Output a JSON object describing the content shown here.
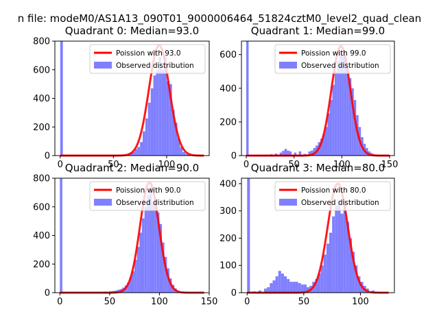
{
  "figure": {
    "suptitle": "n file: modeM0/AS1A13_090T01_9000006464_51824cztM0_level2_quad_clean"
  },
  "colors": {
    "poisson_line": "#ff0000",
    "histogram_fill": "#8080ff",
    "axes": "#000000"
  },
  "chart_data": [
    {
      "type": "bar",
      "title": "Quadrant 0: Median=93.0",
      "xlim": [
        -5,
        140
      ],
      "ylim": [
        0,
        800
      ],
      "xticks": [
        0,
        50,
        100
      ],
      "yticks": [
        0,
        200,
        400,
        600,
        800
      ],
      "series": [
        {
          "name": "Poission with 93.0",
          "kind": "line",
          "mean": 93.0,
          "peak": 770,
          "sigma": 9.6
        },
        {
          "name": "Observed distribution",
          "kind": "histogram",
          "bin_width": 2.5,
          "outlier_bin": {
            "x": 0,
            "count": 800
          },
          "bins": [
            [
              60,
              8
            ],
            [
              62.5,
              12
            ],
            [
              65,
              20
            ],
            [
              67.5,
              25
            ],
            [
              70,
              45
            ],
            [
              72.5,
              60
            ],
            [
              75,
              95
            ],
            [
              77.5,
              170
            ],
            [
              80,
              260
            ],
            [
              82.5,
              370
            ],
            [
              85,
              470
            ],
            [
              87.5,
              560
            ],
            [
              90,
              600
            ],
            [
              92.5,
              690
            ],
            [
              95,
              600
            ],
            [
              97.5,
              700
            ],
            [
              100,
              520
            ],
            [
              102.5,
              500
            ],
            [
              105,
              320
            ],
            [
              107.5,
              230
            ],
            [
              110,
              120
            ],
            [
              112.5,
              60
            ],
            [
              115,
              25
            ],
            [
              117.5,
              12
            ],
            [
              120,
              5
            ]
          ]
        }
      ],
      "legend": "top-right"
    },
    {
      "type": "bar",
      "title": "Quadrant 1: Median=99.0",
      "xlim": [
        -5,
        155
      ],
      "ylim": [
        0,
        680
      ],
      "xticks": [
        0,
        50,
        100,
        150
      ],
      "yticks": [
        0,
        200,
        400,
        600
      ],
      "series": [
        {
          "name": "Poission with 99.0",
          "kind": "line",
          "mean": 99.0,
          "peak": 650,
          "sigma": 9.9
        },
        {
          "name": "Observed distribution",
          "kind": "histogram",
          "bin_width": 2.5,
          "outlier_bin": {
            "x": 0,
            "count": 680
          },
          "bins": [
            [
              20,
              5
            ],
            [
              25,
              8
            ],
            [
              30,
              12
            ],
            [
              35,
              18
            ],
            [
              37.5,
              28
            ],
            [
              40,
              40
            ],
            [
              42.5,
              30
            ],
            [
              45,
              25
            ],
            [
              50,
              18
            ],
            [
              55,
              25
            ],
            [
              60,
              10
            ],
            [
              65,
              25
            ],
            [
              67.5,
              30
            ],
            [
              70,
              45
            ],
            [
              72.5,
              60
            ],
            [
              75,
              80
            ],
            [
              77.5,
              100
            ],
            [
              80,
              130
            ],
            [
              82.5,
              170
            ],
            [
              85,
              250
            ],
            [
              87.5,
              330
            ],
            [
              90,
              420
            ],
            [
              92.5,
              500
            ],
            [
              95,
              560
            ],
            [
              97.5,
              610
            ],
            [
              100,
              600
            ],
            [
              102.5,
              580
            ],
            [
              105,
              510
            ],
            [
              107.5,
              460
            ],
            [
              110,
              400
            ],
            [
              112.5,
              330
            ],
            [
              115,
              240
            ],
            [
              117.5,
              170
            ],
            [
              120,
              110
            ],
            [
              122.5,
              70
            ],
            [
              125,
              45
            ],
            [
              127.5,
              25
            ],
            [
              130,
              15
            ],
            [
              132.5,
              8
            ],
            [
              135,
              4
            ]
          ]
        }
      ],
      "legend": "top-right"
    },
    {
      "type": "bar",
      "title": "Quadrant 2: Median=90.0",
      "xlim": [
        -5,
        150
      ],
      "ylim": [
        0,
        800
      ],
      "xticks": [
        0,
        50,
        100,
        150
      ],
      "yticks": [
        0,
        200,
        400,
        600,
        800
      ],
      "series": [
        {
          "name": "Poission with 90.0",
          "kind": "line",
          "mean": 90.0,
          "peak": 770,
          "sigma": 9.5
        },
        {
          "name": "Observed distribution",
          "kind": "histogram",
          "bin_width": 2.5,
          "outlier_bin": {
            "x": 0,
            "count": 800
          },
          "bins": [
            [
              35,
              5
            ],
            [
              40,
              5
            ],
            [
              45,
              8
            ],
            [
              50,
              10
            ],
            [
              52.5,
              12
            ],
            [
              55,
              15
            ],
            [
              57.5,
              20
            ],
            [
              60,
              25
            ],
            [
              62.5,
              35
            ],
            [
              65,
              50
            ],
            [
              67.5,
              70
            ],
            [
              70,
              110
            ],
            [
              72.5,
              150
            ],
            [
              75,
              230
            ],
            [
              77.5,
              320
            ],
            [
              80,
              420
            ],
            [
              82.5,
              520
            ],
            [
              85,
              600
            ],
            [
              87.5,
              680
            ],
            [
              90,
              740
            ],
            [
              92.5,
              620
            ],
            [
              95,
              650
            ],
            [
              97.5,
              560
            ],
            [
              100,
              480
            ],
            [
              102.5,
              350
            ],
            [
              105,
              250
            ],
            [
              107.5,
              170
            ],
            [
              110,
              100
            ],
            [
              112.5,
              55
            ],
            [
              115,
              30
            ],
            [
              117.5,
              15
            ],
            [
              120,
              8
            ],
            [
              122.5,
              5
            ],
            [
              125,
              3
            ]
          ]
        }
      ],
      "legend": "top-right"
    },
    {
      "type": "bar",
      "title": "Quadrant 3: Median=80.0",
      "xlim": [
        -5,
        130
      ],
      "ylim": [
        0,
        420
      ],
      "xticks": [
        0,
        50,
        100
      ],
      "yticks": [
        0,
        100,
        200,
        300,
        400
      ],
      "series": [
        {
          "name": "Poission with 80.0",
          "kind": "line",
          "mean": 80.0,
          "peak": 400,
          "sigma": 8.9
        },
        {
          "name": "Observed distribution",
          "kind": "histogram",
          "bin_width": 2.5,
          "outlier_bin": {
            "x": 0,
            "count": 420
          },
          "bins": [
            [
              5,
              5
            ],
            [
              10,
              8
            ],
            [
              15,
              15
            ],
            [
              17.5,
              20
            ],
            [
              20,
              35
            ],
            [
              22.5,
              45
            ],
            [
              25,
              60
            ],
            [
              27.5,
              80
            ],
            [
              30,
              70
            ],
            [
              32.5,
              60
            ],
            [
              35,
              50
            ],
            [
              37.5,
              40
            ],
            [
              40,
              40
            ],
            [
              42.5,
              40
            ],
            [
              45,
              35
            ],
            [
              47.5,
              30
            ],
            [
              50,
              30
            ],
            [
              52.5,
              20
            ],
            [
              55,
              25
            ],
            [
              57.5,
              40
            ],
            [
              60,
              50
            ],
            [
              62.5,
              70
            ],
            [
              65,
              100
            ],
            [
              67.5,
              140
            ],
            [
              70,
              180
            ],
            [
              72.5,
              220
            ],
            [
              75,
              280
            ],
            [
              77.5,
              320
            ],
            [
              80,
              340
            ],
            [
              82.5,
              290
            ],
            [
              85,
              330
            ],
            [
              87.5,
              260
            ],
            [
              90,
              200
            ],
            [
              92.5,
              150
            ],
            [
              95,
              100
            ],
            [
              97.5,
              60
            ],
            [
              100,
              40
            ],
            [
              102.5,
              25
            ],
            [
              105,
              15
            ],
            [
              110,
              8
            ],
            [
              115,
              3
            ]
          ]
        }
      ],
      "legend": "top-right"
    }
  ]
}
